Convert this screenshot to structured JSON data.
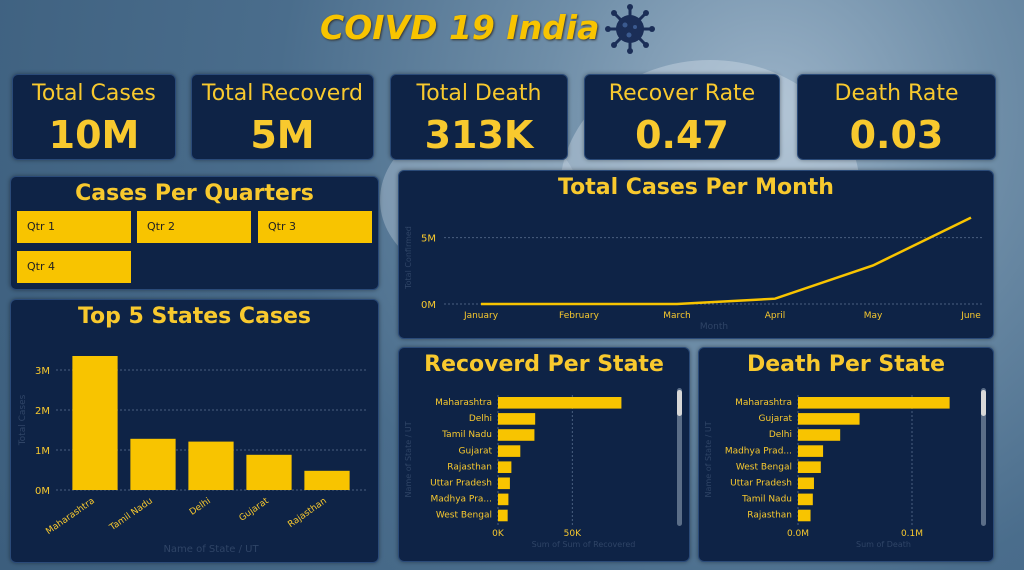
{
  "header": {
    "title": "COIVD 19 India",
    "icon": "virus-icon"
  },
  "kpis": [
    {
      "label": "Total Cases",
      "value": "10M"
    },
    {
      "label": "Total Recoverd",
      "value": "5M"
    },
    {
      "label": "Total Death",
      "value": "313K"
    },
    {
      "label": "Recover Rate",
      "value": "0.47"
    },
    {
      "label": "Death Rate",
      "value": "0.03"
    }
  ],
  "quarters": {
    "title": "Cases Per Quarters",
    "items": [
      "Qtr 1",
      "Qtr 2",
      "Qtr 3",
      "Qtr 4"
    ]
  },
  "colors": {
    "accent": "#f8c400",
    "panel": "#0e2346",
    "text": "#f8c92e"
  },
  "chart_data": [
    {
      "id": "top5",
      "type": "bar",
      "title": "Top 5 States Cases",
      "categories": [
        "Maharashtra",
        "Tamil Nadu",
        "Delhi",
        "Gujarat",
        "Rajasthan"
      ],
      "values": [
        3350000,
        1280000,
        1210000,
        880000,
        480000
      ],
      "ylim": [
        0,
        3500000
      ],
      "yticks": [
        0,
        1000000,
        2000000,
        3000000
      ],
      "yticklabels": [
        "0M",
        "1M",
        "2M",
        "3M"
      ],
      "xlabel": "Name of State / UT",
      "ylabel": "Total Cases"
    },
    {
      "id": "month",
      "type": "line",
      "title": "Total Cases Per Month",
      "categories": [
        "January",
        "February",
        "March",
        "April",
        "May",
        "June"
      ],
      "values": [
        10,
        20,
        1500,
        400000,
        2900000,
        6500000
      ],
      "ylim": [
        0,
        7000000
      ],
      "yticks": [
        0,
        5000000
      ],
      "yticklabels": [
        "0M",
        "5M"
      ],
      "xlabel": "Month",
      "ylabel": "Total Confirmed"
    },
    {
      "id": "recovered",
      "type": "bar",
      "orientation": "horizontal",
      "title": "Recoverd Per State",
      "categories": [
        "Maharashtra",
        "Delhi",
        "Tamil Nadu",
        "Gujarat",
        "Rajasthan",
        "Uttar Pradesh",
        "Madhya Pra...",
        "West Bengal"
      ],
      "values": [
        83000,
        25000,
        24500,
        15000,
        9000,
        8000,
        7000,
        6500
      ],
      "xlim": [
        0,
        115000
      ],
      "xticks": [
        0,
        50000
      ],
      "xticklabels": [
        "0K",
        "50K"
      ],
      "xlabel": "Sum of Sum of Recovered",
      "ylabel": "Name of State / UT"
    },
    {
      "id": "death",
      "type": "bar",
      "orientation": "horizontal",
      "title": "Death Per State",
      "categories": [
        "Maharashtra",
        "Gujarat",
        "Delhi",
        "Madhya Prad...",
        "West Bengal",
        "Uttar Pradesh",
        "Tamil Nadu",
        "Rajasthan"
      ],
      "values": [
        133000,
        54000,
        37000,
        22000,
        20000,
        14000,
        13000,
        11000
      ],
      "xlim": [
        0,
        150000
      ],
      "xticks": [
        0,
        100000
      ],
      "xticklabels": [
        "0.0M",
        "0.1M"
      ],
      "xlabel": "Sum of Death",
      "ylabel": "Name of State / UT"
    }
  ]
}
